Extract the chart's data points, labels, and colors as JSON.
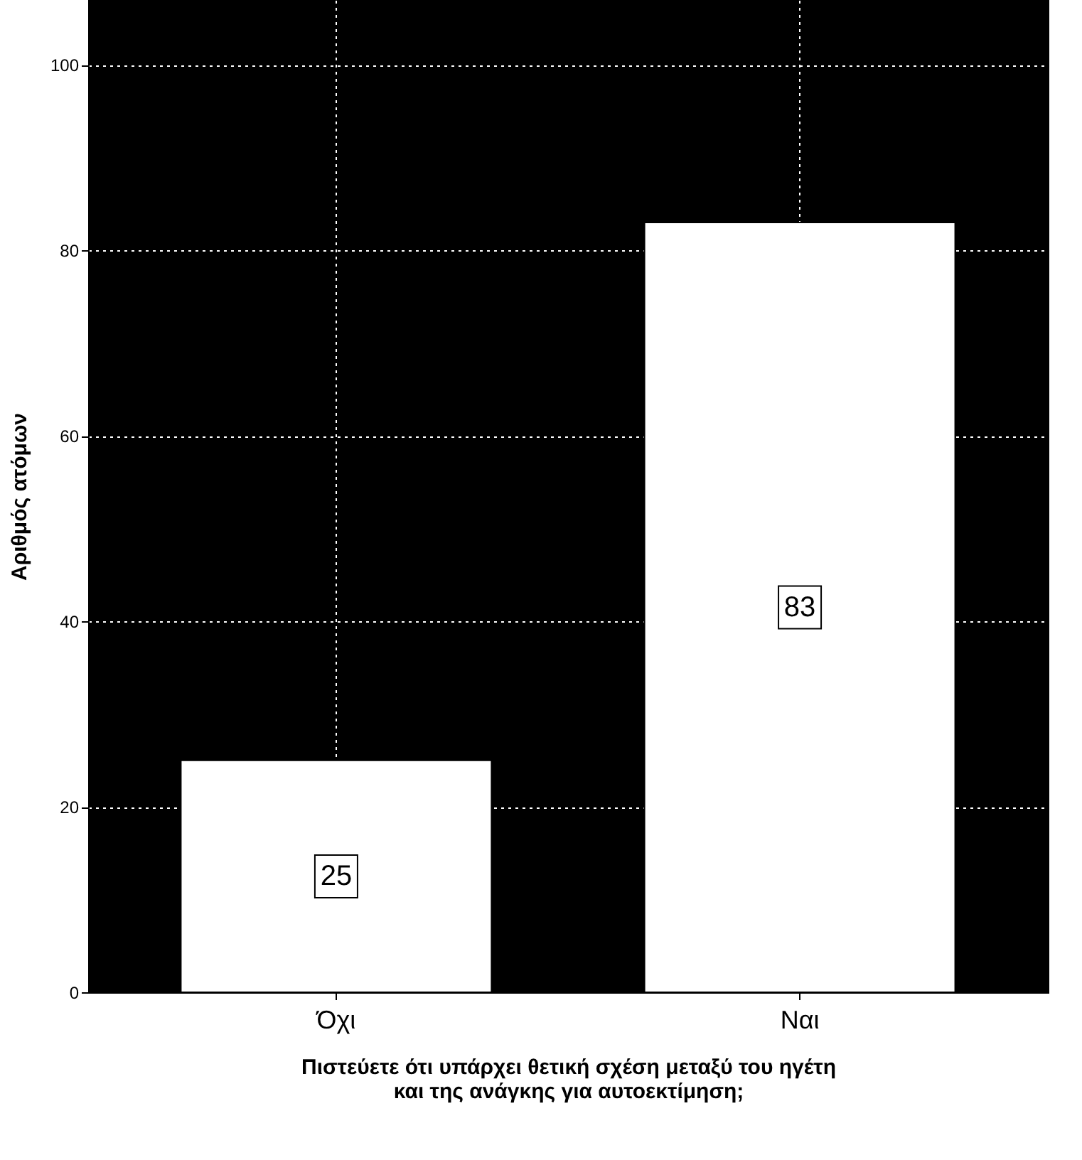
{
  "chart_data": {
    "type": "bar",
    "categories": [
      "Όχι",
      "Ναι"
    ],
    "values": [
      25,
      83
    ],
    "color": "#ffffff",
    "ylabel": "Αριθμός ατόμων",
    "xlabel": "Πιστεύετε ότι υπάρχει θετική σχέση μεταξύ του ηγέτη\nκαι της ανάγκης για αυτοεκτίμηση;",
    "ylim": [
      0,
      107
    ],
    "yticks": [
      0,
      20,
      40,
      60,
      80,
      100
    ],
    "grid": true,
    "data_labels": true
  }
}
